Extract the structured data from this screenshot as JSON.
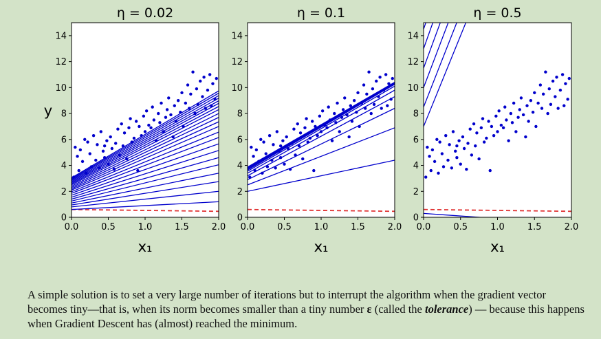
{
  "chart_data": [
    {
      "type": "scatter",
      "title": "η = 0.02",
      "xlabel": "x₁",
      "ylabel": "y",
      "xlim": [
        0,
        2
      ],
      "ylim": [
        0,
        15
      ],
      "xticks": [
        "0.0",
        "0.5",
        "1.0",
        "1.5",
        "2.0"
      ],
      "yticks": [
        "0",
        "2",
        "4",
        "6",
        "8",
        "10",
        "12",
        "14"
      ],
      "initial_guess_dashed": {
        "intercept": 0.6,
        "slope": -0.07
      },
      "prediction_lines": [
        {
          "intercept": 0.6,
          "slope": 0.3
        },
        {
          "intercept": 0.8,
          "slope": 0.6
        },
        {
          "intercept": 0.95,
          "slope": 0.9
        },
        {
          "intercept": 1.1,
          "slope": 1.15
        },
        {
          "intercept": 1.25,
          "slope": 1.4
        },
        {
          "intercept": 1.4,
          "slope": 1.6
        },
        {
          "intercept": 1.55,
          "slope": 1.8
        },
        {
          "intercept": 1.7,
          "slope": 1.98
        },
        {
          "intercept": 1.85,
          "slope": 2.15
        },
        {
          "intercept": 1.97,
          "slope": 2.3
        },
        {
          "intercept": 2.1,
          "slope": 2.45
        },
        {
          "intercept": 2.2,
          "slope": 2.58
        },
        {
          "intercept": 2.3,
          "slope": 2.7
        },
        {
          "intercept": 2.4,
          "slope": 2.8
        },
        {
          "intercept": 2.5,
          "slope": 2.9
        },
        {
          "intercept": 2.58,
          "slope": 2.98
        },
        {
          "intercept": 2.66,
          "slope": 3.06
        },
        {
          "intercept": 2.74,
          "slope": 3.12
        },
        {
          "intercept": 2.82,
          "slope": 3.18
        },
        {
          "intercept": 2.9,
          "slope": 3.24
        },
        {
          "intercept": 2.97,
          "slope": 3.3
        },
        {
          "intercept": 3.04,
          "slope": 3.35
        }
      ]
    },
    {
      "type": "scatter",
      "title": "η = 0.1",
      "xlabel": "x₁",
      "ylabel": "",
      "xlim": [
        0,
        2
      ],
      "ylim": [
        0,
        15
      ],
      "xticks": [
        "0.0",
        "0.5",
        "1.0",
        "1.5",
        "2.0"
      ],
      "yticks": [
        "0",
        "2",
        "4",
        "6",
        "8",
        "10",
        "12",
        "14"
      ],
      "initial_guess_dashed": {
        "intercept": 0.6,
        "slope": -0.07
      },
      "prediction_lines": [
        {
          "intercept": 2.0,
          "slope": 1.2
        },
        {
          "intercept": 2.5,
          "slope": 2.2
        },
        {
          "intercept": 2.9,
          "slope": 2.75
        },
        {
          "intercept": 3.2,
          "slope": 3.05
        },
        {
          "intercept": 3.4,
          "slope": 3.2
        },
        {
          "intercept": 3.55,
          "slope": 3.28
        },
        {
          "intercept": 3.65,
          "slope": 3.3
        },
        {
          "intercept": 3.72,
          "slope": 3.3
        },
        {
          "intercept": 3.78,
          "slope": 3.3
        },
        {
          "intercept": 3.83,
          "slope": 3.28
        },
        {
          "intercept": 3.87,
          "slope": 3.27
        }
      ]
    },
    {
      "type": "scatter",
      "title": "η = 0.5",
      "xlabel": "x₁",
      "ylabel": "",
      "xlim": [
        0,
        2
      ],
      "ylim": [
        0,
        15
      ],
      "xticks": [
        "0.0",
        "0.5",
        "1.0",
        "1.5",
        "2.0"
      ],
      "yticks": [
        "0",
        "2",
        "4",
        "6",
        "8",
        "10",
        "12",
        "14"
      ],
      "initial_guess_dashed": {
        "intercept": 0.6,
        "slope": -0.07
      },
      "prediction_lines": [
        {
          "intercept": 0.3,
          "slope": -0.4
        },
        {
          "intercept": 7.0,
          "slope": 14.0
        },
        {
          "intercept": 8.5,
          "slope": 14.5
        },
        {
          "intercept": 10.0,
          "slope": 15.0
        },
        {
          "intercept": 11.5,
          "slope": 15.5
        },
        {
          "intercept": 13.0,
          "slope": 16.0
        },
        {
          "intercept": 14.5,
          "slope": 16.5
        },
        {
          "intercept": 16.0,
          "slope": 17.0
        },
        {
          "intercept": 17.5,
          "slope": 17.5
        },
        {
          "intercept": 19.0,
          "slope": 18.0
        },
        {
          "intercept": 20.5,
          "slope": 18.5
        }
      ]
    }
  ],
  "data_points": [
    [
      0.05,
      5.4
    ],
    [
      0.08,
      4.7
    ],
    [
      0.1,
      3.6
    ],
    [
      0.12,
      5.2
    ],
    [
      0.15,
      4.3
    ],
    [
      0.18,
      6.0
    ],
    [
      0.2,
      3.4
    ],
    [
      0.22,
      5.8
    ],
    [
      0.25,
      4.9
    ],
    [
      0.27,
      3.9
    ],
    [
      0.3,
      6.3
    ],
    [
      0.33,
      4.4
    ],
    [
      0.35,
      5.6
    ],
    [
      0.38,
      3.8
    ],
    [
      0.4,
      6.6
    ],
    [
      0.43,
      5.1
    ],
    [
      0.45,
      4.6
    ],
    [
      0.48,
      5.9
    ],
    [
      0.5,
      4.1
    ],
    [
      0.53,
      6.2
    ],
    [
      0.55,
      5.3
    ],
    [
      0.58,
      3.7
    ],
    [
      0.6,
      5.7
    ],
    [
      0.63,
      6.8
    ],
    [
      0.65,
      4.8
    ],
    [
      0.68,
      7.2
    ],
    [
      0.7,
      5.5
    ],
    [
      0.72,
      6.5
    ],
    [
      0.75,
      4.5
    ],
    [
      0.78,
      6.9
    ],
    [
      0.8,
      7.6
    ],
    [
      0.82,
      5.8
    ],
    [
      0.85,
      6.1
    ],
    [
      0.88,
      7.4
    ],
    [
      0.9,
      3.6
    ],
    [
      0.92,
      7.0
    ],
    [
      0.95,
      6.3
    ],
    [
      0.98,
      7.8
    ],
    [
      1.0,
      6.6
    ],
    [
      1.02,
      8.2
    ],
    [
      1.05,
      7.1
    ],
    [
      1.08,
      6.9
    ],
    [
      1.1,
      8.5
    ],
    [
      1.12,
      7.5
    ],
    [
      1.15,
      5.9
    ],
    [
      1.18,
      8.0
    ],
    [
      1.2,
      7.3
    ],
    [
      1.22,
      8.8
    ],
    [
      1.25,
      6.6
    ],
    [
      1.28,
      7.7
    ],
    [
      1.3,
      8.3
    ],
    [
      1.32,
      9.2
    ],
    [
      1.35,
      7.9
    ],
    [
      1.38,
      6.2
    ],
    [
      1.4,
      8.6
    ],
    [
      1.42,
      7.4
    ],
    [
      1.45,
      9.0
    ],
    [
      1.48,
      8.1
    ],
    [
      1.5,
      9.6
    ],
    [
      1.52,
      7.0
    ],
    [
      1.55,
      8.8
    ],
    [
      1.58,
      10.2
    ],
    [
      1.6,
      8.4
    ],
    [
      1.62,
      9.5
    ],
    [
      1.65,
      11.2
    ],
    [
      1.68,
      8.0
    ],
    [
      1.7,
      9.9
    ],
    [
      1.72,
      8.7
    ],
    [
      1.75,
      10.5
    ],
    [
      1.78,
      9.3
    ],
    [
      1.8,
      10.8
    ],
    [
      1.82,
      8.4
    ],
    [
      1.85,
      9.8
    ],
    [
      1.88,
      11.0
    ],
    [
      1.9,
      8.6
    ],
    [
      1.92,
      10.3
    ],
    [
      1.95,
      9.1
    ],
    [
      1.97,
      10.7
    ],
    [
      0.03,
      3.1
    ],
    [
      0.45,
      5.5
    ]
  ],
  "caption": {
    "part1": "A simple solution is to set a very large number of iterations but to interrupt the algorithm when the gradient vector becomes tiny—that is, when its norm becomes smaller than a tiny number ",
    "epsilon": "ε",
    "part2": " (called the ",
    "tolerance": "tolerance",
    "part3": ") — because this happens when Gradient Descent has (almost) reached the minimum."
  },
  "colors": {
    "points": "#0000cc",
    "lines": "#0000cc",
    "dashed": "#e03030",
    "axes": "#000000",
    "background": "#d3e3c8",
    "plot_bg": "#ffffff"
  }
}
